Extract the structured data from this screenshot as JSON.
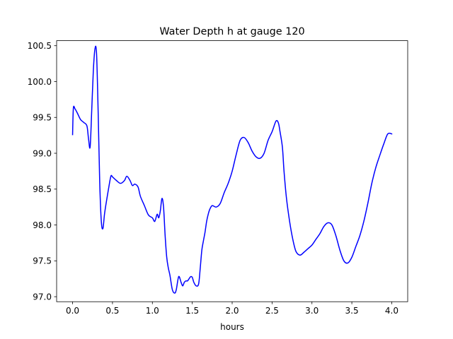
{
  "chart_data": {
    "type": "line",
    "title": "Water Depth h at gauge 120",
    "xlabel": "hours",
    "ylabel": "",
    "xlim": [
      -0.2,
      4.2
    ],
    "ylim": [
      96.93,
      100.57
    ],
    "x_ticks": [
      0.0,
      0.5,
      1.0,
      1.5,
      2.0,
      2.5,
      3.0,
      3.5,
      4.0
    ],
    "x_tick_labels": [
      "0.0",
      "0.5",
      "1.0",
      "1.5",
      "2.0",
      "2.5",
      "3.0",
      "3.5",
      "4.0"
    ],
    "y_ticks": [
      97.0,
      97.5,
      98.0,
      98.5,
      99.0,
      99.5,
      100.0,
      100.5
    ],
    "y_tick_labels": [
      "97.0",
      "97.5",
      "98.0",
      "98.5",
      "99.0",
      "99.5",
      "100.0",
      "100.5"
    ],
    "grid": false,
    "legend": "none",
    "series": [
      {
        "color": "#0000ff",
        "x": [
          0.0,
          0.01,
          0.03,
          0.06,
          0.1,
          0.14,
          0.18,
          0.2,
          0.22,
          0.24,
          0.26,
          0.28,
          0.3,
          0.32,
          0.34,
          0.36,
          0.38,
          0.4,
          0.42,
          0.45,
          0.48,
          0.5,
          0.52,
          0.55,
          0.6,
          0.65,
          0.68,
          0.72,
          0.75,
          0.78,
          0.82,
          0.85,
          0.9,
          0.95,
          1.0,
          1.03,
          1.06,
          1.08,
          1.1,
          1.12,
          1.14,
          1.16,
          1.18,
          1.2,
          1.22,
          1.25,
          1.28,
          1.3,
          1.33,
          1.36,
          1.38,
          1.4,
          1.42,
          1.44,
          1.46,
          1.48,
          1.5,
          1.52,
          1.55,
          1.58,
          1.6,
          1.62,
          1.64,
          1.66,
          1.68,
          1.7,
          1.72,
          1.75,
          1.8,
          1.85,
          1.9,
          1.95,
          2.0,
          2.05,
          2.1,
          2.15,
          2.2,
          2.25,
          2.3,
          2.35,
          2.4,
          2.45,
          2.5,
          2.55,
          2.58,
          2.6,
          2.63,
          2.65,
          2.68,
          2.72,
          2.76,
          2.8,
          2.85,
          2.9,
          2.95,
          3.0,
          3.05,
          3.1,
          3.15,
          3.2,
          3.25,
          3.3,
          3.35,
          3.4,
          3.45,
          3.5,
          3.55,
          3.6,
          3.65,
          3.7,
          3.75,
          3.8,
          3.85,
          3.9,
          3.95,
          4.0
        ],
        "y": [
          99.26,
          99.63,
          99.62,
          99.56,
          99.47,
          99.43,
          99.38,
          99.2,
          99.09,
          99.6,
          100.15,
          100.45,
          100.4,
          99.6,
          98.6,
          98.05,
          97.95,
          98.15,
          98.3,
          98.5,
          98.68,
          98.67,
          98.65,
          98.62,
          98.58,
          98.62,
          98.68,
          98.62,
          98.55,
          98.57,
          98.53,
          98.4,
          98.27,
          98.14,
          98.1,
          98.05,
          98.15,
          98.1,
          98.2,
          98.37,
          98.25,
          97.85,
          97.55,
          97.4,
          97.3,
          97.1,
          97.05,
          97.1,
          97.28,
          97.2,
          97.15,
          97.2,
          97.22,
          97.22,
          97.25,
          97.28,
          97.27,
          97.2,
          97.15,
          97.18,
          97.4,
          97.65,
          97.78,
          97.9,
          98.05,
          98.15,
          98.22,
          98.27,
          98.25,
          98.3,
          98.45,
          98.58,
          98.75,
          98.98,
          99.18,
          99.22,
          99.15,
          99.03,
          98.95,
          98.93,
          99.0,
          99.18,
          99.3,
          99.45,
          99.42,
          99.3,
          99.08,
          98.75,
          98.38,
          98.05,
          97.8,
          97.63,
          97.58,
          97.62,
          97.67,
          97.72,
          97.8,
          97.88,
          97.98,
          98.03,
          98.0,
          97.85,
          97.65,
          97.5,
          97.47,
          97.55,
          97.7,
          97.85,
          98.05,
          98.3,
          98.58,
          98.8,
          98.97,
          99.13,
          99.27,
          99.27
        ]
      }
    ]
  }
}
